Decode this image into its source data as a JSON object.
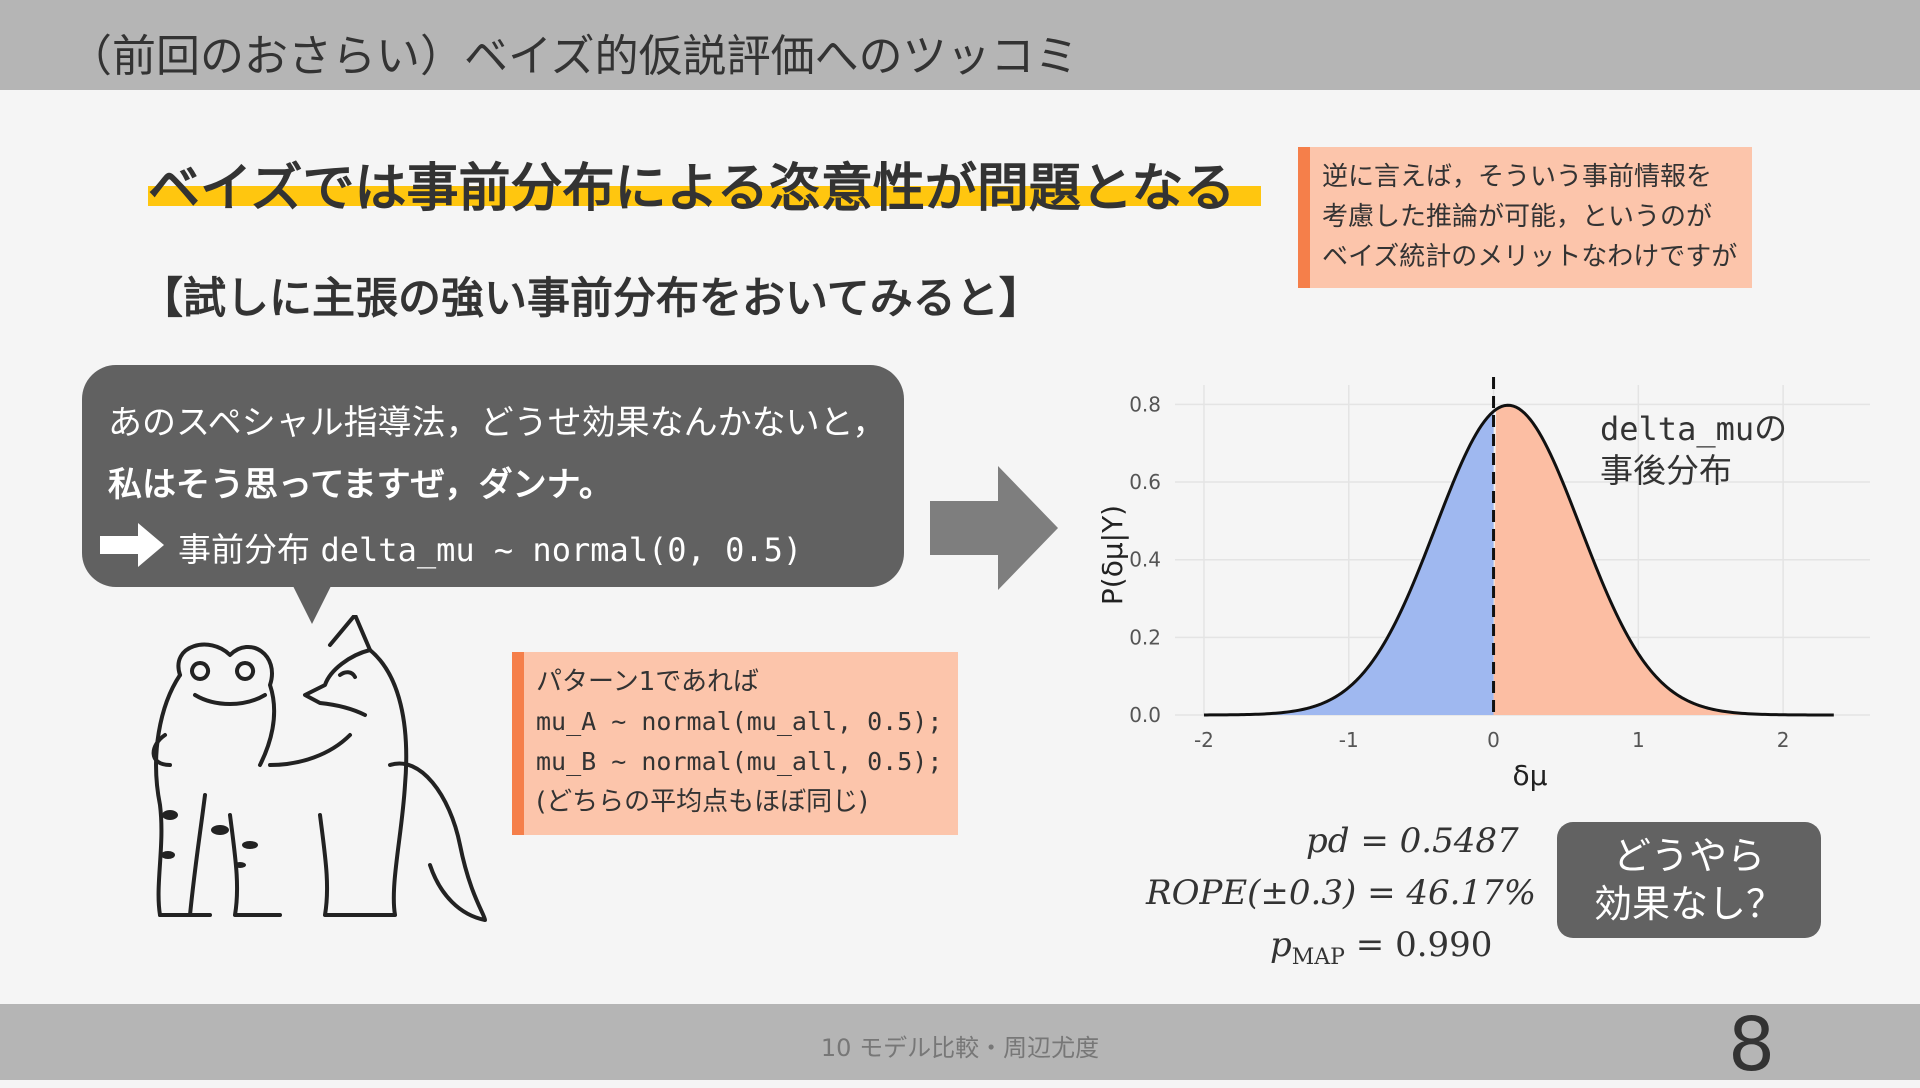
{
  "header": {
    "title": "（前回のおさらい）ベイズ的仮説評価へのツッコミ"
  },
  "main": {
    "heading": "ベイズでは事前分布による恣意性が問題となる",
    "subheading": "【試しに主張の強い事前分布をおいてみると】"
  },
  "note_top": {
    "lines": [
      "逆に言えば，そういう事前情報を",
      "考慮した推論が可能，というのが",
      "ベイズ統計のメリットなわけですが"
    ]
  },
  "bubble": {
    "line1": "あのスペシャル指導法，どうせ効果なんかないと，",
    "line2": "私はそう思ってますぜ，ダンナ。",
    "line3_prefix": "事前分布",
    "line3_code": "delta_mu ~ normal(0, 0.5)"
  },
  "note_mid": {
    "title": "パターン1であれば",
    "code1": "mu_A ~ normal(mu_all, 0.5);",
    "code2": "mu_B ~ normal(mu_all, 0.5);",
    "footer": "(どちらの平均点もほぼ同じ)"
  },
  "chart_data": {
    "type": "area",
    "x_ticks": [
      "-2",
      "-1",
      "0",
      "1",
      "2"
    ],
    "y_ticks": [
      "0.0",
      "0.2",
      "0.4",
      "0.6",
      "0.8"
    ],
    "xlim": [
      -2.2,
      2.6
    ],
    "ylim": [
      0,
      0.85
    ],
    "ylabel": "P(δμ|Y)",
    "xlabel": "δμ",
    "grid": true,
    "vline_x": 0,
    "distribution": {
      "mean": 0.1,
      "sd": 0.5
    },
    "colors": {
      "left_fill": "#9fb8f0",
      "right_fill": "#fcbea3",
      "curve": "#111111"
    },
    "annotation_code": "delta_mu",
    "annotation_rest": "の",
    "annotation_line2": "事後分布"
  },
  "stats": {
    "pd": "pd = 0.5487",
    "rope": "ROPE(±0.3) = 46.17%",
    "map_p": "p",
    "map_sub": "MAP",
    "map_val": " = 0.990"
  },
  "conclusion": {
    "line1": "どうやら",
    "line2": "効果なし？"
  },
  "footer": {
    "label": "10 モデル比較・周辺尤度",
    "page_number": "8"
  },
  "colors": {
    "accent_yellow": "#ffc60f",
    "note_bg": "#fcc5ab",
    "note_border": "#f57f4a",
    "bubble_bg": "#616161"
  }
}
